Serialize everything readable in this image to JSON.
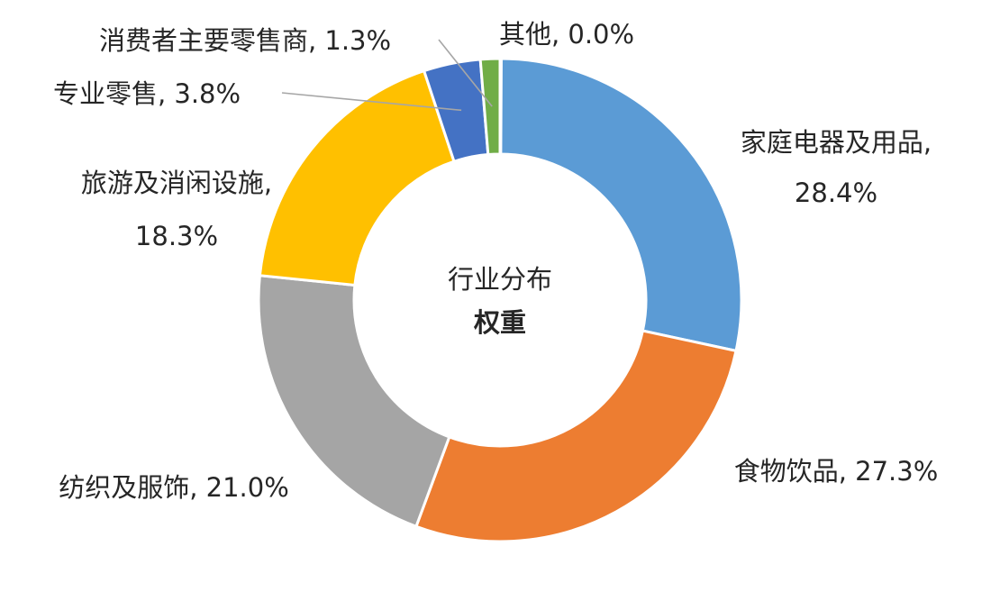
{
  "chart_data": {
    "type": "pie",
    "donut": true,
    "center_label": [
      "行业分布",
      "权重"
    ],
    "slices": [
      {
        "category": "家庭电器及用品",
        "value": 28.4,
        "value_label": "28.4%",
        "color": "#5b9bd5"
      },
      {
        "category": "食物饮品",
        "value": 27.3,
        "value_label": "27.3%",
        "color": "#ed7d31"
      },
      {
        "category": "纺织及服饰",
        "value": 21.0,
        "value_label": "21.0%",
        "color": "#a5a5a5"
      },
      {
        "category": "旅游及消闲设施",
        "value": 18.3,
        "value_label": "18.3%",
        "color": "#ffc000"
      },
      {
        "category": "专业零售",
        "value": 3.8,
        "value_label": "3.8%",
        "color": "#4472c4"
      },
      {
        "category": "消费者主要零售商",
        "value": 1.3,
        "value_label": "1.3%",
        "color": "#70ad47"
      },
      {
        "category": "其他",
        "value": 0.0,
        "value_label": "0.0%",
        "color": "#264478"
      }
    ]
  }
}
